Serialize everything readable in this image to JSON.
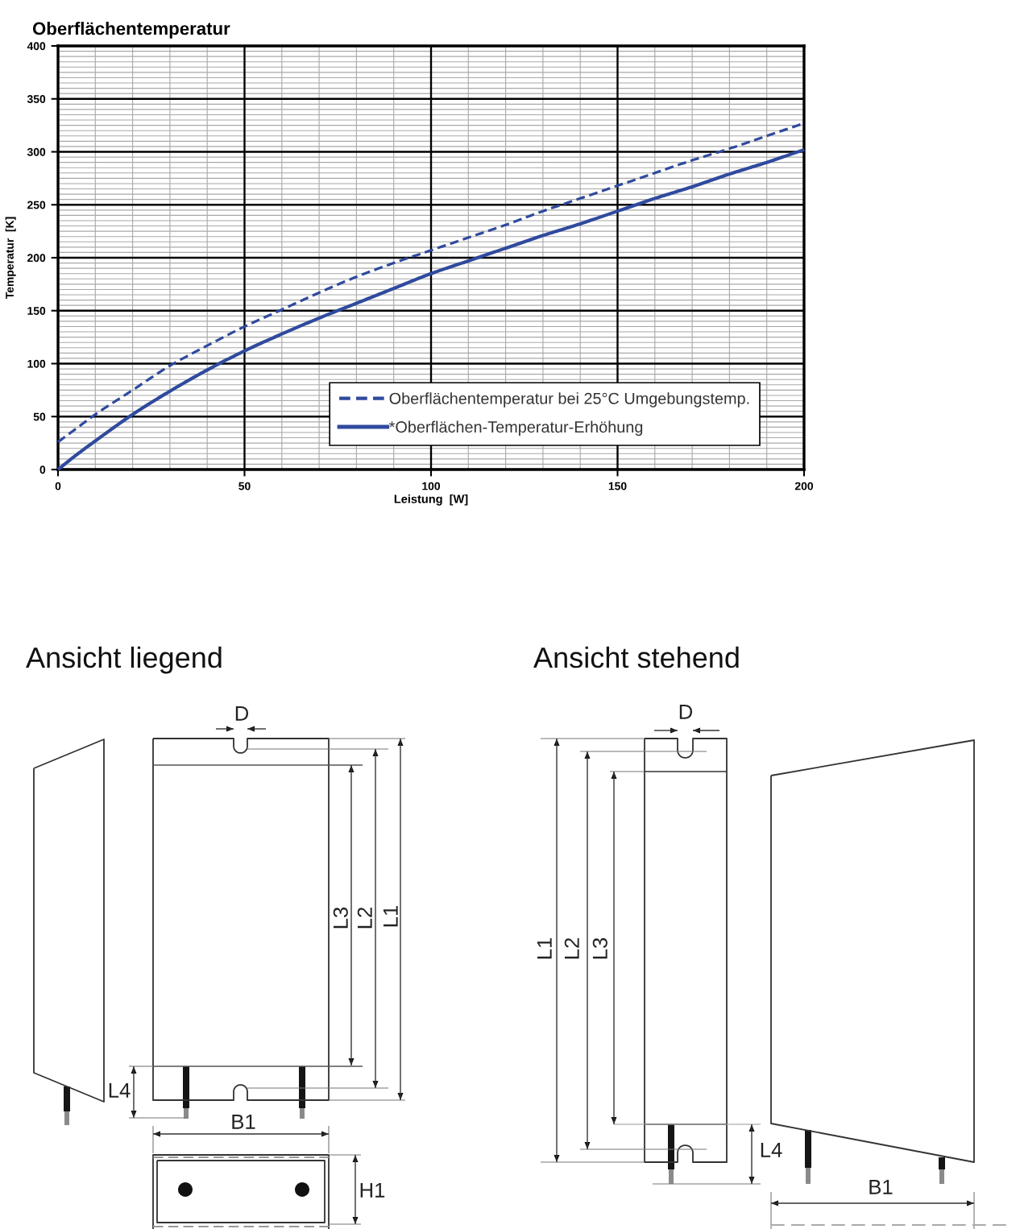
{
  "chart_data": [
    {
      "type": "line",
      "title": "Oberflächentemperatur",
      "xlabel": "Leistung  [W]",
      "ylabel": "Temperatur  [K]",
      "x": [
        0,
        5,
        10,
        20,
        30,
        40,
        50,
        60,
        70,
        80,
        90,
        100,
        110,
        120,
        130,
        140,
        150,
        160,
        170,
        180,
        190,
        200
      ],
      "series": [
        {
          "name": "Oberflächentemperatur bei 25°C Umgebungstemp.",
          "color": "#2f4a9e",
          "line_style": "dashed",
          "values": [
            26,
            39,
            52,
            75,
            98,
            117,
            135,
            151,
            167,
            182,
            195,
            207,
            219,
            231,
            244,
            256,
            268,
            280,
            292,
            303,
            315,
            327
          ]
        },
        {
          "name": "*Oberflächen-Temperatur-Erhöhung",
          "color": "#2f4a9e",
          "line_style": "solid",
          "values": [
            0,
            14,
            27,
            52,
            74,
            94,
            112,
            128,
            143,
            157,
            171,
            185,
            197,
            209,
            221,
            232,
            244,
            256,
            267,
            279,
            290,
            302
          ]
        }
      ],
      "xlim": [
        0,
        200
      ],
      "xticks": [
        0,
        {
          "value": 10,
          "label": null
        },
        {
          "value": 20,
          "label": null
        },
        {
          "value": 30,
          "label": null
        },
        {
          "value": 40,
          "label": null
        },
        50,
        {
          "value": 60,
          "label": null
        },
        {
          "value": 70,
          "label": null
        },
        {
          "value": 80,
          "label": null
        },
        {
          "value": 90,
          "label": null
        },
        100,
        {
          "value": 110,
          "label": null
        },
        {
          "value": 120,
          "label": null
        },
        {
          "value": 130,
          "label": null
        },
        {
          "value": 140,
          "label": null
        },
        150,
        {
          "value": 160,
          "label": null
        },
        {
          "value": 170,
          "label": null
        },
        {
          "value": 180,
          "label": null
        },
        {
          "value": 190,
          "label": null
        },
        200
      ],
      "ylim": [
        0,
        400
      ],
      "yticks": [
        0,
        {
          "value": 5,
          "label": null
        },
        {
          "value": 10,
          "label": null
        },
        {
          "value": 15,
          "label": null
        },
        {
          "value": 20,
          "label": null
        },
        {
          "value": 25,
          "label": null
        },
        {
          "value": 30,
          "label": null
        },
        {
          "value": 35,
          "label": null
        },
        {
          "value": 40,
          "label": null
        },
        {
          "value": 45,
          "label": null
        },
        50,
        {
          "value": 55,
          "label": null
        },
        {
          "value": 60,
          "label": null
        },
        {
          "value": 65,
          "label": null
        },
        {
          "value": 70,
          "label": null
        },
        {
          "value": 75,
          "label": null
        },
        {
          "value": 80,
          "label": null
        },
        {
          "value": 85,
          "label": null
        },
        {
          "value": 90,
          "label": null
        },
        {
          "value": 95,
          "label": null
        },
        100,
        {
          "value": 105,
          "label": null
        },
        {
          "value": 110,
          "label": null
        },
        {
          "value": 115,
          "label": null
        },
        {
          "value": 120,
          "label": null
        },
        {
          "value": 125,
          "label": null
        },
        {
          "value": 130,
          "label": null
        },
        {
          "value": 135,
          "label": null
        },
        {
          "value": 140,
          "label": null
        },
        {
          "value": 145,
          "label": null
        },
        150,
        {
          "value": 155,
          "label": null
        },
        {
          "value": 160,
          "label": null
        },
        {
          "value": 165,
          "label": null
        },
        {
          "value": 170,
          "label": null
        },
        {
          "value": 175,
          "label": null
        },
        {
          "value": 180,
          "label": null
        },
        {
          "value": 185,
          "label": null
        },
        {
          "value": 190,
          "label": null
        },
        {
          "value": 195,
          "label": null
        },
        200,
        {
          "value": 205,
          "label": null
        },
        {
          "value": 210,
          "label": null
        },
        {
          "value": 215,
          "label": null
        },
        {
          "value": 220,
          "label": null
        },
        {
          "value": 225,
          "label": null
        },
        {
          "value": 230,
          "label": null
        },
        {
          "value": 235,
          "label": null
        },
        {
          "value": 240,
          "label": null
        },
        {
          "value": 245,
          "label": null
        },
        250,
        {
          "value": 255,
          "label": null
        },
        {
          "value": 260,
          "label": null
        },
        {
          "value": 265,
          "label": null
        },
        {
          "value": 270,
          "label": null
        },
        {
          "value": 275,
          "label": null
        },
        {
          "value": 280,
          "label": null
        },
        {
          "value": 285,
          "label": null
        },
        {
          "value": 290,
          "label": null
        },
        {
          "value": 295,
          "label": null
        },
        300,
        {
          "value": 305,
          "label": null
        },
        {
          "value": 310,
          "label": null
        },
        {
          "value": 315,
          "label": null
        },
        {
          "value": 320,
          "label": null
        },
        {
          "value": 325,
          "label": null
        },
        {
          "value": 330,
          "label": null
        },
        {
          "value": 335,
          "label": null
        },
        {
          "value": 340,
          "label": null
        },
        {
          "value": 345,
          "label": null
        },
        350,
        {
          "value": 355,
          "label": null
        },
        {
          "value": 360,
          "label": null
        },
        {
          "value": 365,
          "label": null
        },
        {
          "value": 370,
          "label": null
        },
        {
          "value": 375,
          "label": null
        },
        {
          "value": 380,
          "label": null
        },
        {
          "value": 385,
          "label": null
        },
        {
          "value": 390,
          "label": null
        },
        {
          "value": 395,
          "label": null
        },
        400
      ],
      "grid": true,
      "legend": "bottom right"
    },
    {
      "type": "other",
      "title": "Ansicht liegend",
      "annotations": [
        "D",
        "L3",
        "L2",
        "L1",
        "L4",
        "B1",
        "H1"
      ]
    },
    {
      "type": "other",
      "title": "Ansicht stehend",
      "annotations": [
        "D",
        "L1",
        "L2",
        "L3",
        "L4",
        "B1"
      ]
    }
  ]
}
